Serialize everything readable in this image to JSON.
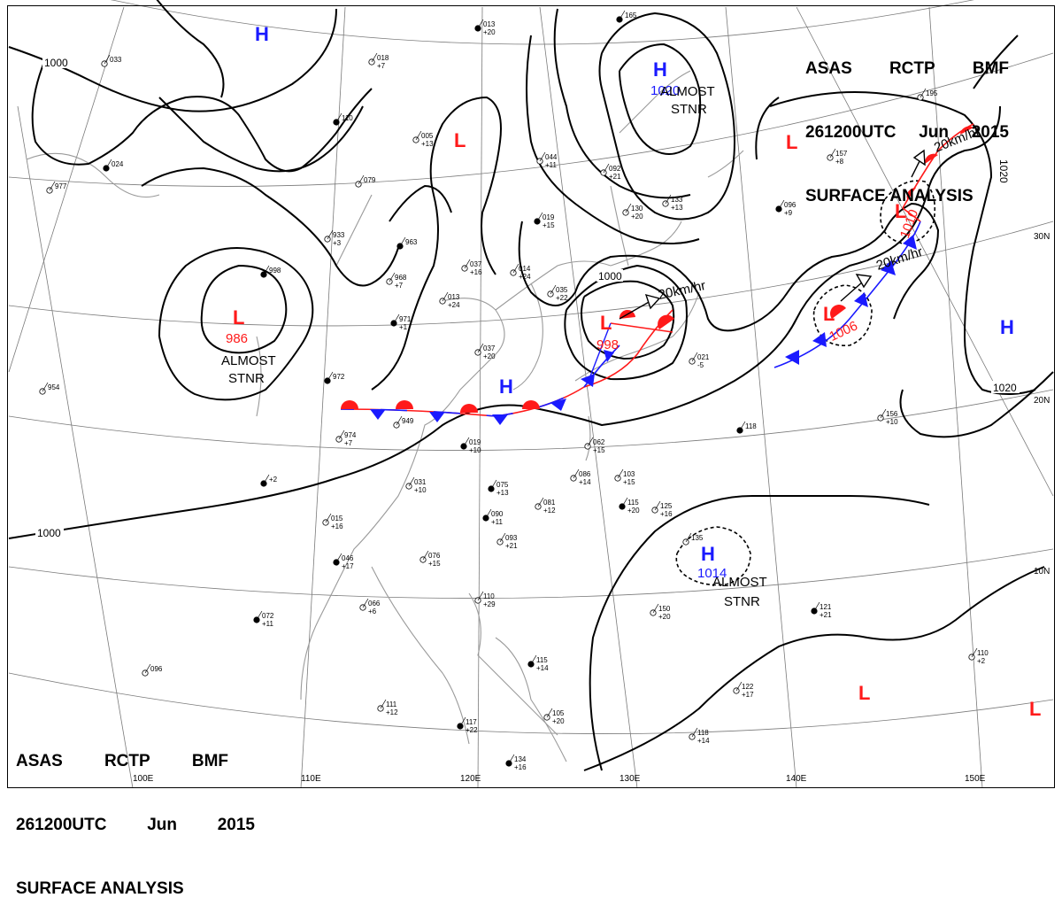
{
  "titles": {
    "top_right": {
      "line1": [
        "ASAS",
        "RCTP",
        "BMF"
      ],
      "line2": [
        "261200UTC",
        "Jun",
        "2015"
      ],
      "line3": "SURFACE ANALYSIS"
    },
    "bottom_left": {
      "line1": [
        "ASAS",
        "RCTP",
        "BMF"
      ],
      "line2": [
        "261200UTC",
        "Jun",
        "2015"
      ],
      "line3": "SURFACE ANALYSIS"
    }
  },
  "pressure_centers": [
    {
      "id": "h-north",
      "type": "H",
      "value": ""
    },
    {
      "id": "l-mongolia",
      "type": "L",
      "value": ""
    },
    {
      "id": "h-okhotsk",
      "type": "H",
      "value": "1020"
    },
    {
      "id": "l-kamchatka",
      "type": "L",
      "value": ""
    },
    {
      "id": "l-tibet",
      "type": "L",
      "value": "986"
    },
    {
      "id": "l-korea",
      "type": "L",
      "value": "998"
    },
    {
      "id": "h-china",
      "type": "H",
      "value": ""
    },
    {
      "id": "l-east-1",
      "type": "L",
      "value": "1010"
    },
    {
      "id": "l-east-2",
      "type": "L",
      "value": "1006"
    },
    {
      "id": "h-pacific",
      "type": "H",
      "value": ""
    },
    {
      "id": "h-mariana",
      "type": "H",
      "value": "1014"
    },
    {
      "id": "l-pacific-1",
      "type": "L",
      "value": ""
    },
    {
      "id": "l-pacific-2",
      "type": "L",
      "value": ""
    }
  ],
  "annotations": {
    "stnr_1": [
      "ALMOST",
      "STNR"
    ],
    "stnr_2": [
      "ALMOST",
      "STNR"
    ],
    "stnr_3": [
      "ALMOST",
      "STNR"
    ],
    "motion_1": "20km/hr",
    "motion_2": "20km/hr",
    "motion_3": "20km/hr"
  },
  "isobar_labels": [
    "1000",
    "1000",
    "1000",
    "1020",
    "1020"
  ],
  "longitudes": [
    "100E",
    "110E",
    "120E",
    "130E",
    "140E",
    "150E"
  ],
  "latitudes": [
    "30N",
    "20N",
    "10N"
  ],
  "colors": {
    "high": "#1a1aff",
    "low": "#ff1a1a",
    "warm_front": "#ff1a1a",
    "cold_front": "#1a1aff",
    "isobar": "#000000",
    "coast": "#9a9a9a"
  },
  "stations": [
    "013 +20",
    "033",
    "018 +7",
    "110",
    "005 +13",
    "044 +11",
    "165",
    "092 +21",
    "130 +20",
    "024",
    "079",
    "933 +3",
    "963",
    "037 +16",
    "014 +24",
    "019 +15",
    "035 +22",
    "133 +13",
    "096 +9",
    "157 +8",
    "195",
    "998",
    "968 +7",
    "013 +24",
    "971 +1",
    "037 +20",
    "021 -5",
    "972",
    "974 +7",
    "949",
    "019 +10",
    "062 +15",
    "103 +15",
    "118",
    "156 +10",
    "031 +10",
    "075 +13",
    "086 +14",
    "081 +12",
    "115 +20",
    "125 +16",
    "015 +16",
    "090 +11",
    "093 +21",
    "135",
    "046 +17",
    "076 +15",
    "066 +6",
    "072 +11",
    "110 +29",
    "150 +20",
    "121 +21",
    "110 +2",
    "096",
    "115 +14",
    "122 +17",
    "111 +12",
    "117 +22",
    "105 +20",
    "118 +14",
    "134 +16",
    "954",
    "977",
    "+2"
  ]
}
